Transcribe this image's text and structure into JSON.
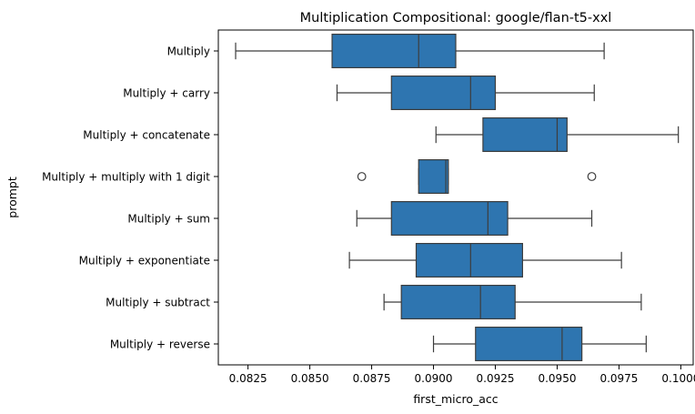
{
  "chart_data": {
    "type": "boxplot",
    "orientation": "horizontal",
    "title": "Multiplication Compositional: google/flan-t5-xxl",
    "xlabel": "first_micro_acc",
    "ylabel": "prompt",
    "xlim": [
      0.0813,
      0.1005
    ],
    "xticks": [
      "0.0825",
      "0.0850",
      "0.0875",
      "0.0900",
      "0.0925",
      "0.0950",
      "0.0975",
      "0.1000"
    ],
    "box_color": "#2e75b0",
    "categories": [
      "Multiply",
      "Multiply + carry",
      "Multiply + concatenate",
      "Multiply + multiply with 1 digit",
      "Multiply + sum",
      "Multiply + exponentiate",
      "Multiply + subtract",
      "Multiply + reverse"
    ],
    "boxes": [
      {
        "whisker_low": 0.082,
        "q1": 0.0859,
        "median": 0.0894,
        "q3": 0.0909,
        "whisker_high": 0.0969,
        "outliers": []
      },
      {
        "whisker_low": 0.0861,
        "q1": 0.0883,
        "median": 0.0915,
        "q3": 0.0925,
        "whisker_high": 0.0965,
        "outliers": []
      },
      {
        "whisker_low": 0.0901,
        "q1": 0.092,
        "median": 0.095,
        "q3": 0.0954,
        "whisker_high": 0.0999,
        "outliers": []
      },
      {
        "whisker_low": 0.0894,
        "q1": 0.0894,
        "median": 0.0905,
        "q3": 0.0906,
        "whisker_high": 0.0906,
        "outliers": [
          0.0871,
          0.0964
        ]
      },
      {
        "whisker_low": 0.0869,
        "q1": 0.0883,
        "median": 0.0922,
        "q3": 0.093,
        "whisker_high": 0.0964,
        "outliers": []
      },
      {
        "whisker_low": 0.0866,
        "q1": 0.0893,
        "median": 0.0915,
        "q3": 0.0936,
        "whisker_high": 0.0976,
        "outliers": []
      },
      {
        "whisker_low": 0.088,
        "q1": 0.0887,
        "median": 0.0919,
        "q3": 0.0933,
        "whisker_high": 0.0984,
        "outliers": []
      },
      {
        "whisker_low": 0.09,
        "q1": 0.0917,
        "median": 0.0952,
        "q3": 0.096,
        "whisker_high": 0.0986,
        "outliers": []
      }
    ]
  }
}
